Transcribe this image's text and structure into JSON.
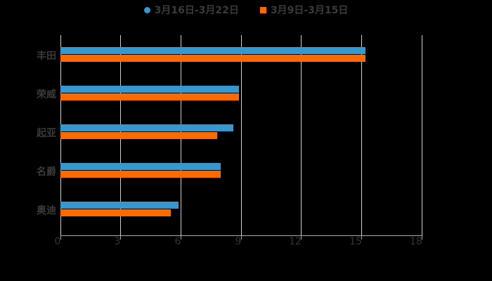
{
  "chart_data": {
    "type": "bar",
    "orientation": "horizontal",
    "title": "",
    "xlabel": "",
    "ylabel": "",
    "categories": [
      "丰田",
      "荣威",
      "起亚",
      "名爵",
      "奥迪"
    ],
    "series": [
      {
        "name": "3月16日-3月22日",
        "color": "#3598cf",
        "marker": "circle",
        "values": [
          15.2,
          8.9,
          8.6,
          8.0,
          5.9
        ]
      },
      {
        "name": "3月9日-3月15日",
        "color": "#fd6b00",
        "marker": "square",
        "values": [
          15.2,
          8.9,
          7.8,
          8.0,
          5.5
        ]
      }
    ],
    "xlim": [
      0,
      18
    ],
    "xticks": [
      "0",
      "3",
      "6",
      "9",
      "12",
      "15",
      "18"
    ],
    "grid": true,
    "legend_position": "top"
  },
  "legend": {
    "items": [
      {
        "label": "3月16日-3月22日"
      },
      {
        "label": "3月9日-3月15日"
      }
    ]
  },
  "axis": {
    "ticks": [
      "0",
      "3",
      "6",
      "9",
      "12",
      "15",
      "18"
    ]
  },
  "categories": [
    "丰田",
    "荣威",
    "起亚",
    "名爵",
    "奥迪"
  ]
}
